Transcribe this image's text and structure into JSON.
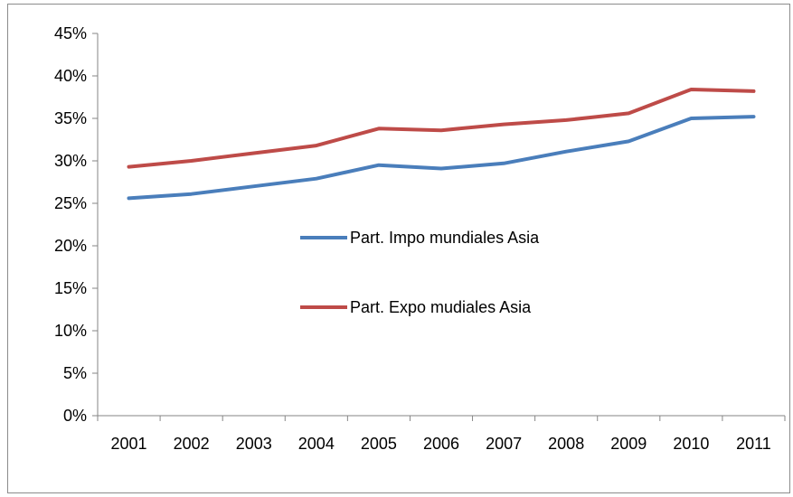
{
  "chart_data": {
    "type": "line",
    "title": "",
    "xlabel": "",
    "ylabel": "",
    "categories": [
      "2001",
      "2002",
      "2003",
      "2004",
      "2005",
      "2006",
      "2007",
      "2008",
      "2009",
      "2010",
      "2011"
    ],
    "y_ticks": [
      "0%",
      "5%",
      "10%",
      "15%",
      "20%",
      "25%",
      "30%",
      "35%",
      "40%",
      "45%"
    ],
    "ylim": [
      0,
      45
    ],
    "y_unit": "%",
    "grid": false,
    "legend_position": "center",
    "series": [
      {
        "name": "Part. Impo mundiales Asia",
        "color": "#4a7ebb",
        "values": [
          25.6,
          26.1,
          27.0,
          27.9,
          29.5,
          29.1,
          29.7,
          31.1,
          32.3,
          35.0,
          35.2
        ]
      },
      {
        "name": "Part. Expo mudiales Asia",
        "color": "#be4b48",
        "values": [
          29.3,
          30.0,
          30.9,
          31.8,
          33.8,
          33.6,
          34.3,
          34.8,
          35.6,
          38.4,
          38.2
        ]
      }
    ]
  }
}
